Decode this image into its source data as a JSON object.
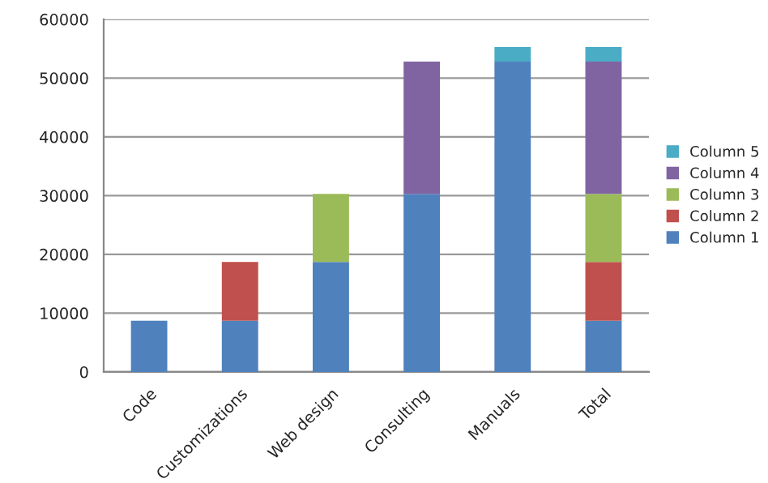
{
  "chart_data": {
    "type": "bar",
    "stacked": true,
    "categories": [
      "Code",
      "Customizations",
      "Web design",
      "Consulting",
      "Manuals",
      "Total"
    ],
    "series": [
      {
        "name": "Column 1",
        "color": "#4f81bd",
        "values": [
          8700,
          8700,
          18700,
          30300,
          52800,
          8700
        ]
      },
      {
        "name": "Column 2",
        "color": "#c0504d",
        "values": [
          null,
          10000,
          null,
          null,
          null,
          10000
        ]
      },
      {
        "name": "Column 3",
        "color": "#9bbb59",
        "values": [
          null,
          null,
          11600,
          null,
          null,
          11600
        ]
      },
      {
        "name": "Column 4",
        "color": "#8064a2",
        "values": [
          null,
          null,
          null,
          22500,
          null,
          22500
        ]
      },
      {
        "name": "Column 5",
        "color": "#4bacc6",
        "values": [
          null,
          null,
          null,
          null,
          2500,
          2500
        ]
      }
    ],
    "ylim": [
      0,
      60000
    ],
    "yticks": [
      0,
      10000,
      20000,
      30000,
      40000,
      50000,
      60000
    ],
    "grid": "y",
    "legend": "right"
  }
}
